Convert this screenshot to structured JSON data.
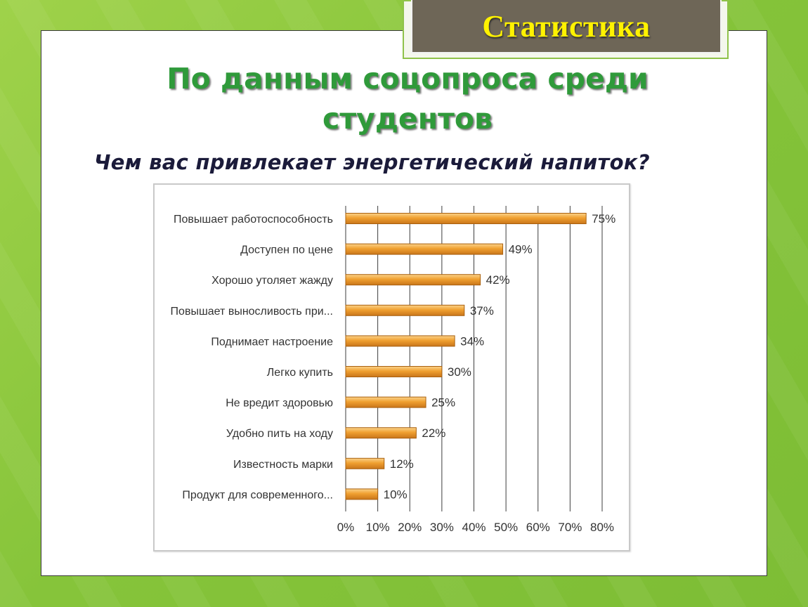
{
  "slide": {
    "badge_title": "Статистика",
    "headline_line1": "По данным соцопроса среди",
    "headline_line2": "студентов",
    "question": "Чем вас привлекает энергетический напиток?"
  },
  "colors": {
    "background": "#8cc63f",
    "badge_fill": "#6e6657",
    "badge_text": "#fff200",
    "headline": "#2f9a3a",
    "question": "#1b1b3a",
    "bar": "#f0a030",
    "bar_border": "#a9600f"
  },
  "chart_data": {
    "type": "bar",
    "orientation": "horizontal",
    "categories": [
      "Повышает работоспособность",
      "Доступен по цене",
      "Хорошо утоляет жажду",
      "Повышает выносливость при...",
      "Поднимает настроение",
      "Легко купить",
      "Не вредит здоровью",
      "Удобно пить на ходу",
      "Известность марки",
      "Продукт для современного..."
    ],
    "values": [
      75,
      49,
      42,
      37,
      34,
      30,
      25,
      22,
      12,
      10
    ],
    "data_labels": [
      "75%",
      "49%",
      "42%",
      "37%",
      "34%",
      "30%",
      "25%",
      "22%",
      "12%",
      "10%"
    ],
    "xlim": [
      0,
      80
    ],
    "xticks": [
      0,
      10,
      20,
      30,
      40,
      50,
      60,
      70,
      80
    ],
    "xtick_labels": [
      "0%",
      "10%",
      "20%",
      "30%",
      "40%",
      "50%",
      "60%",
      "70%",
      "80%"
    ],
    "grid": "vertical",
    "legend": "none"
  }
}
